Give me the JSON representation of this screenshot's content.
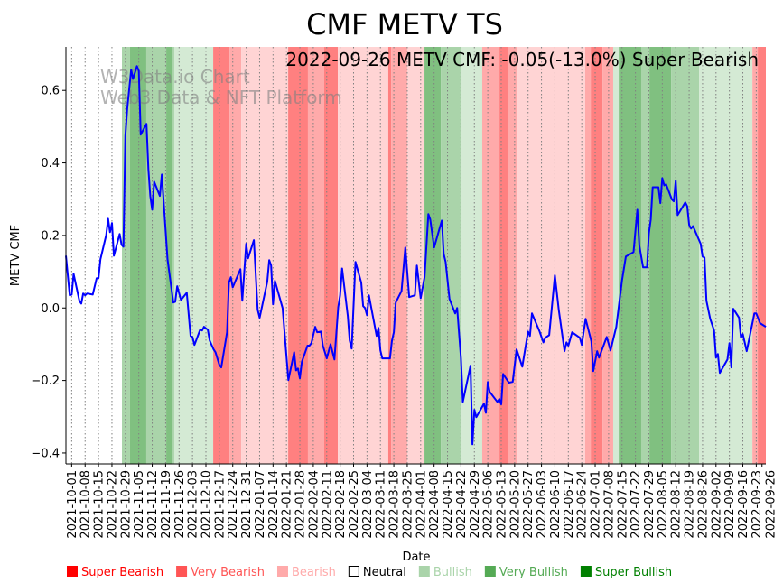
{
  "chart_data": {
    "type": "line",
    "title": "CMF METV TS",
    "annotation": "2022-09-26 METV CMF: -0.05(-13.0%) Super Bearish",
    "watermark": [
      "W3Data.io Chart",
      "Web3 Data & NFT Platform"
    ],
    "xlabel": "Date",
    "ylabel": "METV CMF",
    "x_unit": "days since 2021-09-28",
    "xlim": [
      0,
      365
    ],
    "ylim": [
      -0.43,
      0.72
    ],
    "grid": "vertical dotted at x ticks",
    "yticks": [
      -0.4,
      -0.2,
      0.0,
      0.2,
      0.4,
      0.6
    ],
    "ytick_labels": [
      "−0.4",
      "−0.2",
      "0.0",
      "0.2",
      "0.4",
      "0.6"
    ],
    "xticks_first": 3,
    "xticks_step": 7,
    "xtick_labels": [
      "2021-10-01",
      "2021-10-08",
      "2021-10-15",
      "2021-10-22",
      "2021-10-29",
      "2021-11-05",
      "2021-11-12",
      "2021-11-19",
      "2021-11-26",
      "2021-12-03",
      "2021-12-10",
      "2021-12-17",
      "2021-12-24",
      "2021-12-31",
      "2022-01-07",
      "2022-01-14",
      "2022-01-21",
      "2022-01-28",
      "2022-02-04",
      "2022-02-11",
      "2022-02-18",
      "2022-02-25",
      "2022-03-04",
      "2022-03-11",
      "2022-03-18",
      "2022-03-25",
      "2022-04-01",
      "2022-04-08",
      "2022-04-15",
      "2022-04-22",
      "2022-04-29",
      "2022-05-06",
      "2022-05-13",
      "2022-05-20",
      "2022-05-27",
      "2022-06-03",
      "2022-06-10",
      "2022-06-17",
      "2022-06-24",
      "2022-07-01",
      "2022-07-08",
      "2022-07-15",
      "2022-07-22",
      "2022-07-29",
      "2022-08-05",
      "2022-08-12",
      "2022-08-19",
      "2022-08-26",
      "2022-09-02",
      "2022-09-09",
      "2022-09-16",
      "2022-09-23"
    ],
    "xtick_last": {
      "x": 363,
      "label": "2022-09-26"
    },
    "series": [
      {
        "name": "METV CMF",
        "color": "#0000ff",
        "x": [
          0,
          2,
          3,
          4,
          7,
          8,
          9,
          10,
          11,
          14,
          16,
          17,
          18,
          21,
          22,
          23,
          24,
          25,
          28,
          29,
          30,
          31,
          32,
          34,
          35,
          37,
          38,
          39,
          42,
          43,
          44,
          45,
          46,
          49,
          50,
          53,
          56,
          57,
          58,
          60,
          63,
          65,
          66,
          67,
          70,
          71,
          72,
          74,
          75,
          77,
          78,
          80,
          81,
          84,
          85,
          86,
          87,
          91,
          92,
          94,
          95,
          98,
          100,
          101,
          105,
          106,
          107,
          108,
          109,
          113,
          116,
          119,
          120,
          121,
          122,
          123,
          126,
          127,
          128,
          130,
          131,
          133,
          134,
          136,
          138,
          140,
          142,
          143,
          144,
          147,
          148,
          149,
          151,
          154,
          155,
          156,
          157,
          158,
          162,
          163,
          164,
          165,
          169,
          170,
          171,
          172,
          175,
          177,
          179,
          182,
          183,
          185,
          187,
          189,
          190,
          192,
          196,
          197,
          198,
          200,
          203,
          204,
          206,
          207,
          211,
          212,
          213,
          214,
          218,
          219,
          220,
          221,
          225,
          226,
          227,
          228,
          231,
          233,
          235,
          238,
          241,
          242,
          243,
          247,
          249,
          250,
          252,
          254,
          255,
          257,
          260,
          261,
          262,
          264,
          268,
          269,
          271,
          274,
          275,
          277,
          278,
          282,
          284,
          287,
          290,
          292,
          296,
          298,
          299,
          301,
          303,
          304,
          305,
          306,
          309,
          310,
          311,
          312,
          313,
          316,
          317,
          318,
          319,
          323,
          324,
          325,
          326,
          327,
          331,
          332,
          333,
          334,
          336,
          338,
          339,
          340,
          341,
          345,
          346,
          347,
          348,
          351,
          352,
          353,
          355,
          359,
          360,
          362,
          365
        ],
        "y": [
          0.144,
          0.035,
          0.037,
          0.094,
          0.02,
          0.012,
          0.04,
          0.035,
          0.04,
          0.037,
          0.082,
          0.082,
          0.134,
          0.201,
          0.246,
          0.209,
          0.234,
          0.144,
          0.204,
          0.174,
          0.169,
          0.475,
          0.55,
          0.657,
          0.632,
          0.667,
          0.654,
          0.478,
          0.508,
          0.383,
          0.309,
          0.271,
          0.348,
          0.309,
          0.368,
          0.134,
          0.015,
          0.017,
          0.06,
          0.022,
          0.042,
          -0.077,
          -0.08,
          -0.102,
          -0.06,
          -0.062,
          -0.052,
          -0.06,
          -0.09,
          -0.114,
          -0.122,
          -0.157,
          -0.164,
          -0.067,
          0.07,
          0.085,
          0.057,
          0.107,
          0.02,
          0.177,
          0.137,
          0.187,
          -0.005,
          -0.027,
          0.072,
          0.132,
          0.117,
          0.01,
          0.075,
          0.0,
          -0.199,
          -0.122,
          -0.172,
          -0.167,
          -0.194,
          -0.149,
          -0.104,
          -0.104,
          -0.097,
          -0.052,
          -0.067,
          -0.065,
          -0.104,
          -0.139,
          -0.1,
          -0.142,
          0.002,
          0.035,
          0.109,
          -0.022,
          -0.09,
          -0.112,
          0.127,
          0.07,
          0.005,
          0.0,
          -0.02,
          0.035,
          -0.077,
          -0.055,
          -0.117,
          -0.139,
          -0.139,
          -0.09,
          -0.067,
          0.015,
          0.047,
          0.167,
          0.03,
          0.035,
          0.117,
          0.027,
          0.085,
          0.259,
          0.244,
          0.167,
          0.241,
          0.149,
          0.127,
          0.025,
          -0.015,
          0.0,
          -0.139,
          -0.259,
          -0.159,
          -0.376,
          -0.281,
          -0.301,
          -0.264,
          -0.289,
          -0.204,
          -0.231,
          -0.259,
          -0.251,
          -0.266,
          -0.182,
          -0.206,
          -0.204,
          -0.114,
          -0.162,
          -0.065,
          -0.077,
          -0.015,
          -0.065,
          -0.095,
          -0.082,
          -0.075,
          0.035,
          0.09,
          -0.005,
          -0.119,
          -0.095,
          -0.104,
          -0.067,
          -0.082,
          -0.102,
          -0.03,
          -0.092,
          -0.174,
          -0.119,
          -0.137,
          -0.08,
          -0.117,
          -0.052,
          0.077,
          0.142,
          0.154,
          0.271,
          0.172,
          0.112,
          0.112,
          0.206,
          0.244,
          0.333,
          0.333,
          0.289,
          0.358,
          0.338,
          0.341,
          0.299,
          0.294,
          0.351,
          0.256,
          0.291,
          0.281,
          0.229,
          0.219,
          0.226,
          0.177,
          0.142,
          0.139,
          0.02,
          -0.03,
          -0.062,
          -0.137,
          -0.127,
          -0.179,
          -0.142,
          -0.097,
          -0.164,
          -0.002,
          -0.027,
          -0.082,
          -0.072,
          -0.119,
          -0.015,
          -0.015,
          -0.042,
          -0.052
        ]
      }
    ],
    "bands": [
      [
        29.2,
        33.4,
        "very_bullish"
      ],
      [
        33.4,
        41.9,
        "super_bullish"
      ],
      [
        41.9,
        52.3,
        "very_bullish"
      ],
      [
        52.3,
        55.1,
        "super_bullish"
      ],
      [
        55.1,
        56.5,
        "very_bullish"
      ],
      [
        56.5,
        76.8,
        "bullish"
      ],
      [
        76.8,
        85.3,
        "super_bearish"
      ],
      [
        85.3,
        91.4,
        "very_bearish"
      ],
      [
        91.4,
        115.9,
        "bearish"
      ],
      [
        115.9,
        126.2,
        "super_bearish"
      ],
      [
        126.2,
        134.7,
        "very_bearish"
      ],
      [
        134.7,
        141.8,
        "super_bearish"
      ],
      [
        141.8,
        168.1,
        "bearish"
      ],
      [
        168.1,
        169.6,
        "super_bearish"
      ],
      [
        169.6,
        178,
        "very_bearish"
      ],
      [
        178,
        187,
        "bearish"
      ],
      [
        187,
        195.5,
        "super_bullish"
      ],
      [
        195.5,
        205.8,
        "very_bullish"
      ],
      [
        205.8,
        217.1,
        "bullish"
      ],
      [
        217.1,
        226.1,
        "very_bearish"
      ],
      [
        226.1,
        230.3,
        "super_bearish"
      ],
      [
        230.3,
        235.5,
        "very_bearish"
      ],
      [
        235.5,
        270.8,
        "bearish"
      ],
      [
        270.8,
        273.7,
        "very_bearish"
      ],
      [
        273.7,
        279.8,
        "super_bearish"
      ],
      [
        279.8,
        285.4,
        "very_bearish"
      ],
      [
        285.4,
        288.3,
        "bullish"
      ],
      [
        288.3,
        300,
        "super_bullish"
      ],
      [
        300,
        304.3,
        "very_bullish"
      ],
      [
        304.3,
        315.6,
        "super_bullish"
      ],
      [
        315.6,
        330.2,
        "very_bullish"
      ],
      [
        330.2,
        358,
        "bullish"
      ],
      [
        358,
        360.8,
        "very_bearish"
      ],
      [
        360.8,
        365,
        "super_bearish"
      ]
    ],
    "band_colors": {
      "super_bearish": "#ff8080",
      "very_bearish": "#ffaaaa",
      "bearish": "#ffd4d4",
      "bullish": "#d4ead4",
      "very_bullish": "#aad4aa",
      "super_bullish": "#80c080"
    },
    "legend": [
      {
        "label": "Super Bearish",
        "color": "#ff0000",
        "key": "super_bearish"
      },
      {
        "label": "Very Bearish",
        "color": "#ff5555",
        "key": "very_bearish"
      },
      {
        "label": "Bearish",
        "color": "#ffaaaa",
        "key": "bearish"
      },
      {
        "label": "Neutral",
        "color": "#000000",
        "key": "neutral"
      },
      {
        "label": "Bullish",
        "color": "#aad4aa",
        "key": "bullish"
      },
      {
        "label": "Very Bullish",
        "color": "#55aa55",
        "key": "very_bullish"
      },
      {
        "label": "Super Bullish",
        "color": "#008000",
        "key": "super_bullish"
      }
    ],
    "legend_placement": "bottom"
  }
}
